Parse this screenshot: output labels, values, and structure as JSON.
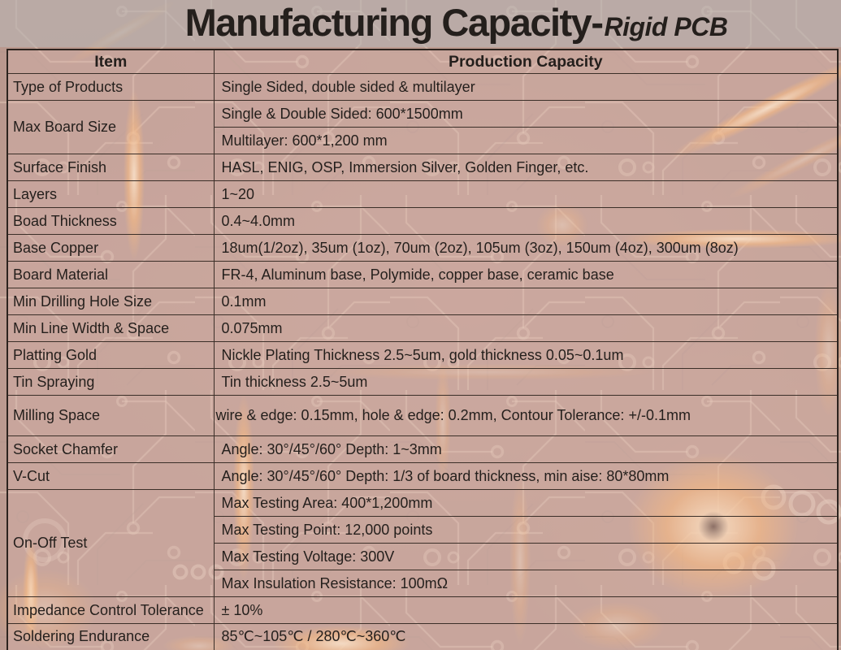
{
  "title": {
    "main": "Manufacturing Capacity-",
    "suffix": "Rigid PCB"
  },
  "table": {
    "headers": {
      "item": "Item",
      "capacity": "Production Capacity"
    },
    "rows": [
      {
        "item": "Type of Products",
        "values": [
          "Single Sided, double sided & multilayer"
        ]
      },
      {
        "item": "Max Board Size",
        "values": [
          "Single & Double Sided: 600*1500mm",
          "Multilayer: 600*1,200 mm"
        ]
      },
      {
        "item": "Surface Finish",
        "values": [
          "HASL, ENIG, OSP, Immersion Silver, Golden Finger, etc."
        ]
      },
      {
        "item": "Layers",
        "values": [
          "1~20"
        ]
      },
      {
        "item": "Boad Thickness",
        "values": [
          "0.4~4.0mm"
        ]
      },
      {
        "item": "Base Copper",
        "values": [
          "18um(1/2oz), 35um (1oz), 70um (2oz), 105um (3oz), 150um (4oz), 300um (8oz)"
        ]
      },
      {
        "item": "Board Material",
        "values": [
          "FR-4, Aluminum base, Polymide, copper base, ceramic base"
        ]
      },
      {
        "item": "Min Drilling Hole Size",
        "values": [
          "0.1mm"
        ]
      },
      {
        "item": "Min Line Width & Space",
        "values": [
          "0.075mm"
        ]
      },
      {
        "item": "Platting Gold",
        "values": [
          "Nickle Plating Thickness 2.5~5um, gold thickness 0.05~0.1um"
        ]
      },
      {
        "item": "Tin Spraying",
        "values": [
          "Tin thickness 2.5~5um"
        ]
      },
      {
        "item": "Milling Space",
        "values": [
          "wire & edge: 0.15mm, hole & edge: 0.2mm, Contour Tolerance: +/-0.1mm"
        ],
        "tall": true,
        "tight": true
      },
      {
        "item": "Socket Chamfer",
        "values": [
          "Angle: 30°/45°/60° Depth: 1~3mm"
        ]
      },
      {
        "item": "V-Cut",
        "values": [
          "Angle: 30°/45°/60° Depth: 1/3 of board thickness, min aise: 80*80mm"
        ]
      },
      {
        "item": "On-Off Test",
        "values": [
          "Max Testing Area: 400*1,200mm",
          "Max Testing Point: 12,000 points",
          "Max Testing Voltage: 300V",
          "Max Insulation Resistance: 100mΩ"
        ]
      },
      {
        "item": "Impedance Control Tolerance",
        "values": [
          "± 10%"
        ]
      },
      {
        "item": "Soldering Endurance",
        "values": [
          "85℃~105℃ / 280℃~360℃"
        ]
      }
    ]
  },
  "colors": {
    "table_border": "#3b2f28",
    "table_border_dark": "#2c231e",
    "text_color": "#241f1c",
    "pcb_base": "#8f4f3c",
    "glow_orange": "#ffb769"
  }
}
